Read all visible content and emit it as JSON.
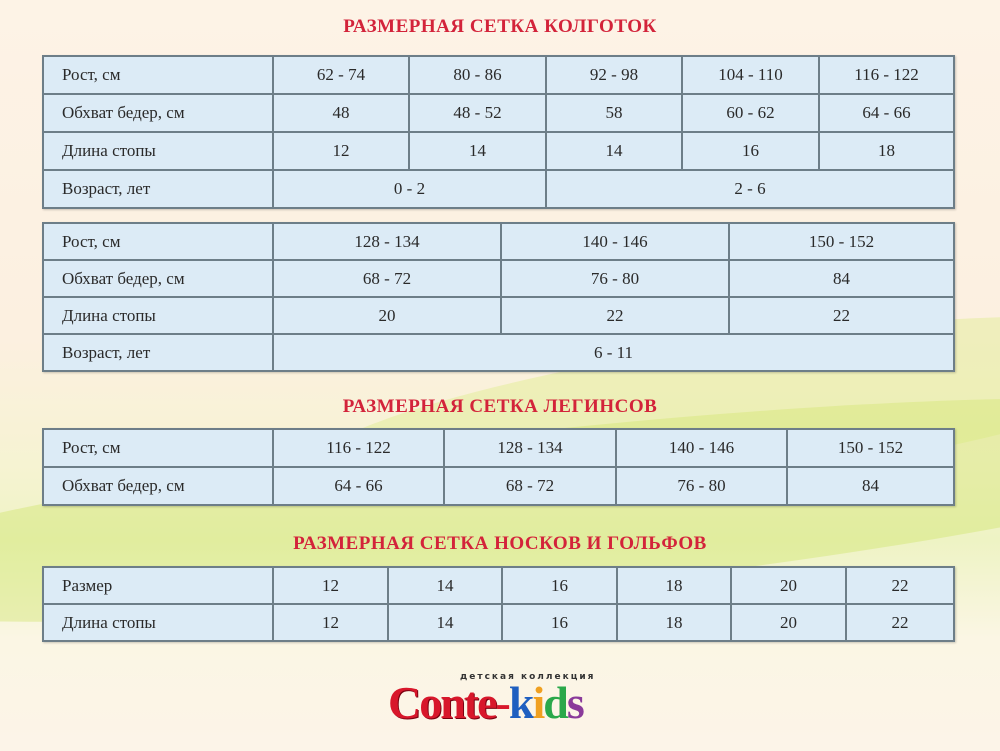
{
  "tights": {
    "title": "РАЗМЕРНАЯ СЕТКА КОЛГОТОК",
    "table1": [
      {
        "label": "Рост, см",
        "cells": [
          [
            "62 - 74",
            1
          ],
          [
            "80 - 86",
            1
          ],
          [
            "92 - 98",
            1
          ],
          [
            "104 - 110",
            1
          ],
          [
            "116 - 122",
            1
          ]
        ]
      },
      {
        "label": "Обхват бедер, см",
        "cells": [
          [
            "48",
            1
          ],
          [
            "48 - 52",
            1
          ],
          [
            "58",
            1
          ],
          [
            "60 - 62",
            1
          ],
          [
            "64 - 66",
            1
          ]
        ]
      },
      {
        "label": "Длина стопы",
        "cells": [
          [
            "12",
            1
          ],
          [
            "14",
            1
          ],
          [
            "14",
            1
          ],
          [
            "16",
            1
          ],
          [
            "18",
            1
          ]
        ]
      },
      {
        "label": "Возраст, лет",
        "cells": [
          [
            "0 - 2",
            2
          ],
          [
            "2 - 6",
            3
          ]
        ]
      }
    ],
    "table2": [
      {
        "label": "Рост, см",
        "cells": [
          [
            "128 - 134",
            1
          ],
          [
            "140 - 146",
            1
          ],
          [
            "150 - 152",
            1
          ]
        ]
      },
      {
        "label": "Обхват бедер, см",
        "cells": [
          [
            "68 - 72",
            1
          ],
          [
            "76 - 80",
            1
          ],
          [
            "84",
            1
          ]
        ]
      },
      {
        "label": "Длина стопы",
        "cells": [
          [
            "20",
            1
          ],
          [
            "22",
            1
          ],
          [
            "22",
            1
          ]
        ]
      },
      {
        "label": "Возраст, лет",
        "cells": [
          [
            "6 - 11",
            3
          ]
        ]
      }
    ]
  },
  "leggings": {
    "title": "РАЗМЕРНАЯ СЕТКА ЛЕГИНСОВ",
    "table": [
      {
        "label": "Рост, см",
        "cells": [
          [
            "116 - 122",
            1
          ],
          [
            "128 - 134",
            1
          ],
          [
            "140 - 146",
            1
          ],
          [
            "150 - 152",
            1
          ]
        ]
      },
      {
        "label": "Обхват бедер, см",
        "cells": [
          [
            "64 - 66",
            1
          ],
          [
            "68 - 72",
            1
          ],
          [
            "76 - 80",
            1
          ],
          [
            "84",
            1
          ]
        ]
      }
    ]
  },
  "socks": {
    "title": "РАЗМЕРНАЯ СЕТКА НОСКОВ И ГОЛЬФОВ",
    "table": [
      {
        "label": "Размер",
        "cells": [
          [
            "12",
            1
          ],
          [
            "14",
            1
          ],
          [
            "16",
            1
          ],
          [
            "18",
            1
          ],
          [
            "20",
            1
          ],
          [
            "22",
            1
          ]
        ]
      },
      {
        "label": "Длина стопы",
        "cells": [
          [
            "12",
            1
          ],
          [
            "14",
            1
          ],
          [
            "16",
            1
          ],
          [
            "18",
            1
          ],
          [
            "20",
            1
          ],
          [
            "22",
            1
          ]
        ]
      }
    ]
  },
  "logo": {
    "subtitle": "детская коллекция",
    "brand": "Conte-kids",
    "colors": {
      "conte": "#d8172b",
      "kids": [
        "#1f5fc0",
        "#f0a020",
        "#2aa84a",
        "#8a3a9a"
      ]
    }
  },
  "colors": {
    "title": "#d3233a",
    "cell": "#dcebf6",
    "border": "#6d7e88"
  }
}
